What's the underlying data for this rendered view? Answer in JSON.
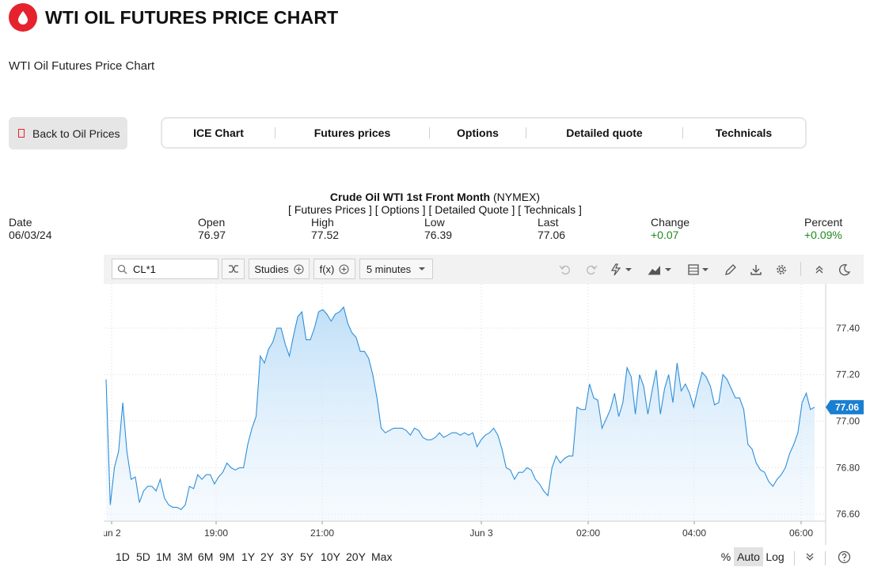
{
  "header": {
    "title": "WTI OIL FUTURES PRICE CHART",
    "icon": "oil-drop-icon"
  },
  "subtitle": "WTI Oil Futures Price Chart",
  "back_button": {
    "label": "Back to Oil Prices"
  },
  "tabs": [
    "ICE Chart",
    "Futures prices",
    "Options",
    "Detailed quote",
    "Technicals"
  ],
  "chart_header": {
    "name": "Crude Oil WTI 1st Front Month",
    "exchange": "(NYMEX)",
    "links": "[ Futures Prices ] [ Options ] [ Detailed Quote ] [ Technicals ]"
  },
  "stats": {
    "date": {
      "label": "Date",
      "value": "06/03/24"
    },
    "open": {
      "label": "Open",
      "value": "76.97"
    },
    "high": {
      "label": "High",
      "value": "77.52"
    },
    "low": {
      "label": "Low",
      "value": "76.39"
    },
    "last": {
      "label": "Last",
      "value": "77.06"
    },
    "change": {
      "label": "Change",
      "value": "+0.07"
    },
    "percent": {
      "label": "Percent",
      "value": "+0.09%"
    }
  },
  "toolbar": {
    "symbol": "CL*1",
    "studies_label": "Studies",
    "fx_label": "f(x)",
    "interval": "5 minutes"
  },
  "colors": {
    "brand": "#e5232e",
    "line": "#2f8fd9",
    "positive": "#1e8a1e",
    "price_tag": "#1a7fd1"
  },
  "bottom": {
    "ranges": [
      "1D",
      "5D",
      "1M",
      "3M",
      "6M",
      "9M",
      "1Y",
      "2Y",
      "3Y",
      "5Y",
      "10Y",
      "20Y",
      "Max"
    ],
    "scale_options": [
      "%",
      "Auto",
      "Log"
    ],
    "active_scale": "Auto"
  },
  "chart_data": {
    "type": "area",
    "title": "",
    "xlabel": "",
    "ylabel": "",
    "interval": "5 minutes",
    "x_ticks": [
      "un 2",
      "19:00",
      "21:00",
      "Jun 3",
      "02:00",
      "04:00",
      "06:00"
    ],
    "y_ticks": [
      76.6,
      76.8,
      77.0,
      77.2,
      77.4
    ],
    "ylim": [
      76.57,
      77.59
    ],
    "last_price_label": "77.06",
    "grid": true,
    "series": [
      {
        "values": [
          77.18,
          76.64,
          76.8,
          76.87,
          77.08,
          76.87,
          76.75,
          76.76,
          76.65,
          76.7,
          76.72,
          76.72,
          76.7,
          76.75,
          76.67,
          76.64,
          76.63,
          76.63,
          76.62,
          76.64,
          76.72,
          76.71,
          76.77,
          76.75,
          76.77,
          76.77,
          76.73,
          76.76,
          76.78,
          76.82,
          76.8,
          76.79,
          76.8,
          76.8,
          76.9,
          76.97,
          77.02,
          77.28,
          77.25,
          77.31,
          77.34,
          77.4,
          77.4,
          77.33,
          77.28,
          77.37,
          77.45,
          77.47,
          77.35,
          77.35,
          77.4,
          77.47,
          77.48,
          77.46,
          77.43,
          77.46,
          77.47,
          77.49,
          77.42,
          77.38,
          77.36,
          77.3,
          77.3,
          77.27,
          77.2,
          77.1,
          76.97,
          76.95,
          76.96,
          76.97,
          76.97,
          76.97,
          76.96,
          76.94,
          76.97,
          76.96,
          76.93,
          76.92,
          76.92,
          76.93,
          76.95,
          76.93,
          76.94,
          76.95,
          76.95,
          76.94,
          76.95,
          76.94,
          76.95,
          76.89,
          76.92,
          76.94,
          76.95,
          76.97,
          76.94,
          76.88,
          76.8,
          76.79,
          76.75,
          76.78,
          76.78,
          76.8,
          76.79,
          76.75,
          76.73,
          76.7,
          76.68,
          76.8,
          76.85,
          76.82,
          76.84,
          76.85,
          76.85,
          77.06,
          77.05,
          77.05,
          77.16,
          77.1,
          77.09,
          76.97,
          77.01,
          77.05,
          77.12,
          77.02,
          77.08,
          77.23,
          77.19,
          77.03,
          77.2,
          77.15,
          77.03,
          77.13,
          77.22,
          77.03,
          77.14,
          77.2,
          77.08,
          77.25,
          77.13,
          77.16,
          77.12,
          77.06,
          77.14,
          77.21,
          77.19,
          77.15,
          77.07,
          77.08,
          77.2,
          77.18,
          77.14,
          77.1,
          77.1,
          77.05,
          76.9,
          76.88,
          76.82,
          76.79,
          76.78,
          76.74,
          76.72,
          76.75,
          76.77,
          76.8,
          76.86,
          76.9,
          76.95,
          77.08,
          77.12,
          77.05,
          77.06
        ]
      }
    ]
  }
}
